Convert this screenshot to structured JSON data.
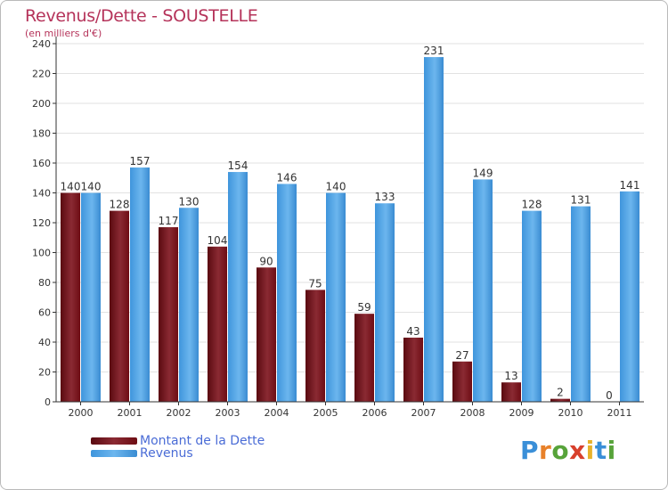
{
  "header": {
    "title": "Revenus/Dette - SOUSTELLE",
    "subtitle": "(en milliers d'€)"
  },
  "colors": {
    "dette": "#6e0d14",
    "revenus": "#4fa3e3",
    "title": "#b5335a",
    "legend_text": "#4a6cd6"
  },
  "chart_data": {
    "type": "bar",
    "categories": [
      "2000",
      "2001",
      "2002",
      "2003",
      "2004",
      "2005",
      "2006",
      "2007",
      "2008",
      "2009",
      "2010",
      "2011"
    ],
    "series": [
      {
        "name": "Montant de la Dette",
        "values": [
          140,
          128,
          117,
          104,
          90,
          75,
          59,
          43,
          27,
          13,
          2,
          0
        ]
      },
      {
        "name": "Revenus",
        "values": [
          140,
          157,
          130,
          154,
          146,
          140,
          133,
          231,
          149,
          128,
          131,
          141
        ]
      }
    ],
    "ylim": [
      0,
      240
    ],
    "yticks": [
      0,
      20,
      40,
      60,
      80,
      100,
      120,
      140,
      160,
      180,
      200,
      220,
      240
    ],
    "grid": true,
    "legend_position": "bottom-left"
  },
  "legend": {
    "items": [
      "Montant de la Dette",
      "Revenus"
    ]
  },
  "logo": {
    "text": "Proxiti",
    "letters": [
      "P",
      "r",
      "o",
      "x",
      "i",
      "t",
      "i"
    ],
    "letter_colors": [
      "#3a8fd8",
      "#e8812a",
      "#57a33a",
      "#d8402c",
      "#e8b22a",
      "#3a8fd8",
      "#57a33a"
    ]
  }
}
